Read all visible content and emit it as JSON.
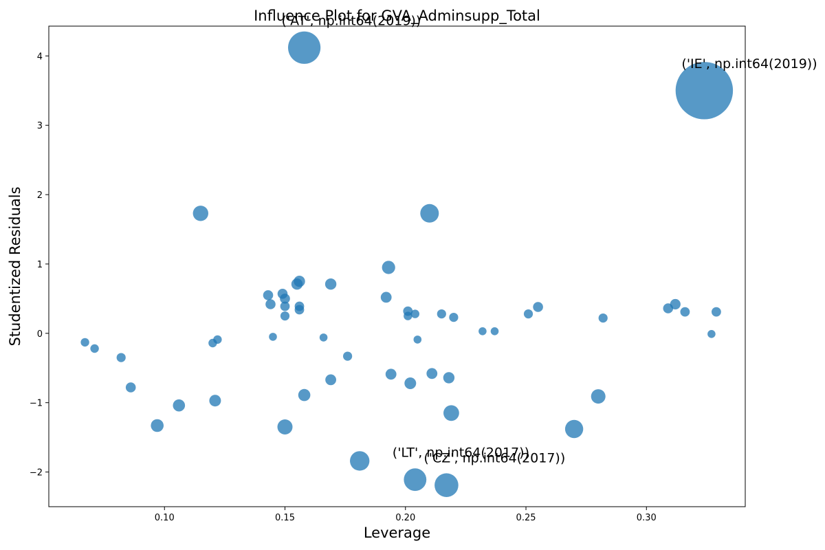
{
  "chart_data": {
    "type": "scatter",
    "title": "Influence Plot for GVA_Adminsupp_Total",
    "xlabel": "Leverage",
    "ylabel": "Studentized Residuals",
    "xlim": [
      0.052,
      0.341
    ],
    "ylim": [
      -2.5,
      4.43
    ],
    "xticks": [
      0.1,
      0.15,
      0.2,
      0.25,
      0.3
    ],
    "yticks": [
      -2,
      -1,
      0,
      1,
      2,
      3,
      4
    ],
    "grid": false,
    "marker_color": "#1f77b4",
    "marker_alpha": 0.75,
    "points": [
      {
        "x": 0.158,
        "y": 4.12,
        "size": 1150
      },
      {
        "x": 0.324,
        "y": 3.5,
        "size": 3600
      },
      {
        "x": 0.115,
        "y": 1.73,
        "size": 260
      },
      {
        "x": 0.21,
        "y": 1.73,
        "size": 380
      },
      {
        "x": 0.193,
        "y": 0.95,
        "size": 190
      },
      {
        "x": 0.156,
        "y": 0.75,
        "size": 140
      },
      {
        "x": 0.155,
        "y": 0.71,
        "size": 140
      },
      {
        "x": 0.169,
        "y": 0.71,
        "size": 140
      },
      {
        "x": 0.143,
        "y": 0.55,
        "size": 110
      },
      {
        "x": 0.149,
        "y": 0.57,
        "size": 110
      },
      {
        "x": 0.15,
        "y": 0.5,
        "size": 110
      },
      {
        "x": 0.192,
        "y": 0.52,
        "size": 130
      },
      {
        "x": 0.144,
        "y": 0.42,
        "size": 110
      },
      {
        "x": 0.15,
        "y": 0.39,
        "size": 100
      },
      {
        "x": 0.156,
        "y": 0.39,
        "size": 100
      },
      {
        "x": 0.156,
        "y": 0.34,
        "size": 100
      },
      {
        "x": 0.15,
        "y": 0.25,
        "size": 90
      },
      {
        "x": 0.201,
        "y": 0.32,
        "size": 100
      },
      {
        "x": 0.204,
        "y": 0.28,
        "size": 80
      },
      {
        "x": 0.201,
        "y": 0.25,
        "size": 80
      },
      {
        "x": 0.215,
        "y": 0.28,
        "size": 90
      },
      {
        "x": 0.22,
        "y": 0.23,
        "size": 90
      },
      {
        "x": 0.251,
        "y": 0.28,
        "size": 90
      },
      {
        "x": 0.255,
        "y": 0.38,
        "size": 110
      },
      {
        "x": 0.282,
        "y": 0.22,
        "size": 90
      },
      {
        "x": 0.309,
        "y": 0.36,
        "size": 110
      },
      {
        "x": 0.312,
        "y": 0.42,
        "size": 120
      },
      {
        "x": 0.316,
        "y": 0.31,
        "size": 100
      },
      {
        "x": 0.329,
        "y": 0.31,
        "size": 100
      },
      {
        "x": 0.232,
        "y": 0.03,
        "size": 70
      },
      {
        "x": 0.237,
        "y": 0.03,
        "size": 70
      },
      {
        "x": 0.327,
        "y": -0.01,
        "size": 70
      },
      {
        "x": 0.067,
        "y": -0.13,
        "size": 80
      },
      {
        "x": 0.071,
        "y": -0.22,
        "size": 80
      },
      {
        "x": 0.12,
        "y": -0.14,
        "size": 80
      },
      {
        "x": 0.122,
        "y": -0.09,
        "size": 80
      },
      {
        "x": 0.145,
        "y": -0.05,
        "size": 70
      },
      {
        "x": 0.166,
        "y": -0.06,
        "size": 70
      },
      {
        "x": 0.205,
        "y": -0.09,
        "size": 70
      },
      {
        "x": 0.082,
        "y": -0.35,
        "size": 90
      },
      {
        "x": 0.176,
        "y": -0.33,
        "size": 90
      },
      {
        "x": 0.194,
        "y": -0.59,
        "size": 130
      },
      {
        "x": 0.211,
        "y": -0.58,
        "size": 130
      },
      {
        "x": 0.218,
        "y": -0.64,
        "size": 140
      },
      {
        "x": 0.169,
        "y": -0.67,
        "size": 130
      },
      {
        "x": 0.202,
        "y": -0.72,
        "size": 150
      },
      {
        "x": 0.086,
        "y": -0.78,
        "size": 110
      },
      {
        "x": 0.158,
        "y": -0.89,
        "size": 160
      },
      {
        "x": 0.121,
        "y": -0.97,
        "size": 150
      },
      {
        "x": 0.28,
        "y": -0.91,
        "size": 230
      },
      {
        "x": 0.106,
        "y": -1.04,
        "size": 160
      },
      {
        "x": 0.097,
        "y": -1.33,
        "size": 180
      },
      {
        "x": 0.15,
        "y": -1.35,
        "size": 250
      },
      {
        "x": 0.219,
        "y": -1.15,
        "size": 270
      },
      {
        "x": 0.27,
        "y": -1.38,
        "size": 360
      },
      {
        "x": 0.181,
        "y": -1.84,
        "size": 420
      },
      {
        "x": 0.204,
        "y": -2.11,
        "size": 560
      },
      {
        "x": 0.217,
        "y": -2.19,
        "size": 620
      }
    ],
    "annotations": [
      {
        "text": "('AT', np.int64(2019))",
        "x": 0.158,
        "y": 4.12
      },
      {
        "text": "('IE', np.int64(2019))",
        "x": 0.324,
        "y": 3.5
      },
      {
        "text": "('LT', np.int64(2017))",
        "x": 0.204,
        "y": -2.11
      },
      {
        "text": "('CZ', np.int64(2017))",
        "x": 0.217,
        "y": -2.19
      }
    ]
  }
}
